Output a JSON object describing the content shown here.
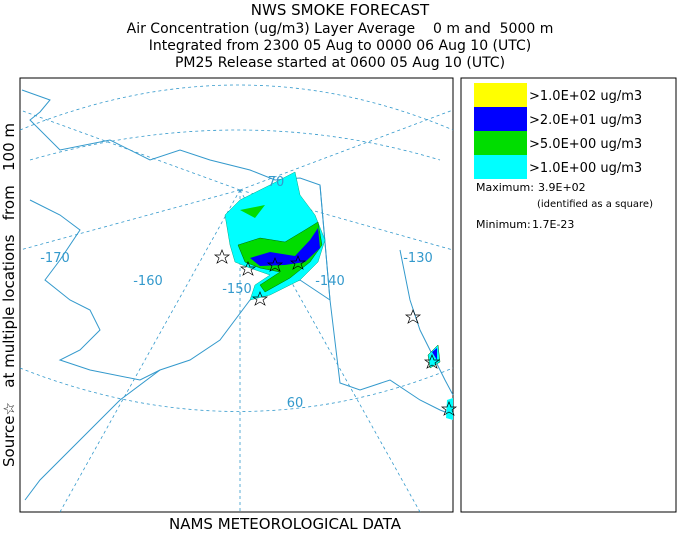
{
  "header": {
    "title": "NWS SMOKE FORECAST",
    "lines": [
      "Air Concentration (ug/m3) Layer Average    0 m and  5000 m",
      "Integrated from 2300 05 Aug to 0000 06 Aug 10 (UTC)",
      "PM25 Release started at 0600 05 Aug 10 (UTC)"
    ]
  },
  "side_label": "Source☆   at multiple locations   from   100 m",
  "footer": "NAMS METEOROLOGICAL DATA",
  "legend": [
    {
      "label": ">1.0E+02 ug/m3",
      "color": "#ffff00"
    },
    {
      "label": ">2.0E+01 ug/m3",
      "color": "#0000ff"
    },
    {
      "label": ">5.0E+00 ug/m3",
      "color": "#00dd00"
    },
    {
      "label": ">1.0E+00 ug/m3",
      "color": "#00ffff"
    }
  ],
  "maximum": {
    "label": "Maximum:",
    "value": "3.9E+02",
    "note": "(identified as a square)"
  },
  "minimum": {
    "label": "Minimum:",
    "value": "1.7E-23"
  },
  "map": {
    "graticule_labels": [
      "-170",
      "-160",
      "-150",
      "-140",
      "-130",
      "70",
      "60"
    ]
  }
}
